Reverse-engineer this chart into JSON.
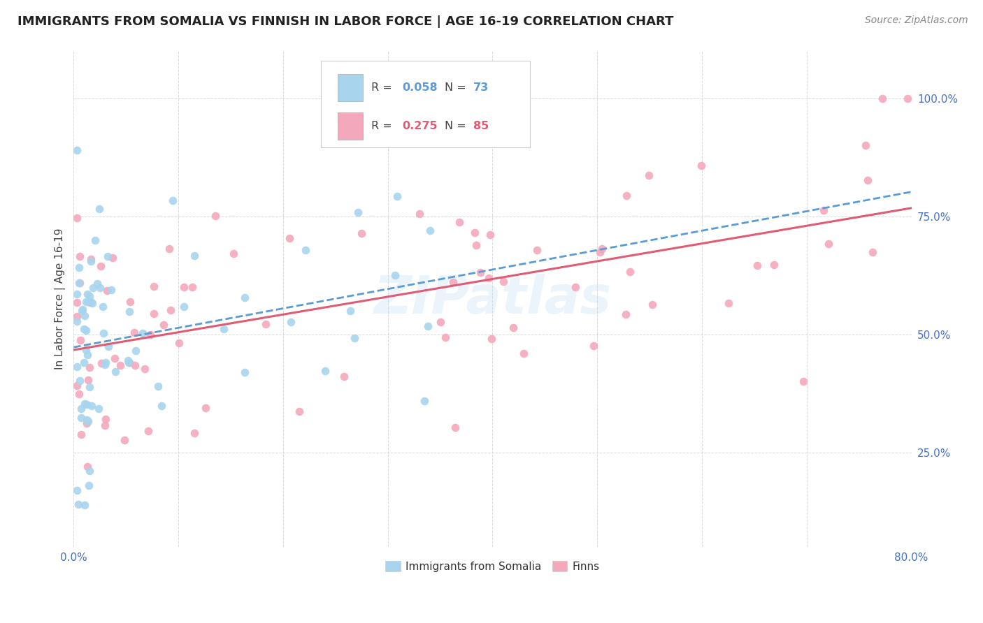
{
  "title": "IMMIGRANTS FROM SOMALIA VS FINNISH IN LABOR FORCE | AGE 16-19 CORRELATION CHART",
  "source": "Source: ZipAtlas.com",
  "ylabel": "In Labor Force | Age 16-19",
  "xlim": [
    0.0,
    0.8
  ],
  "ylim": [
    0.05,
    1.1
  ],
  "yticks": [
    0.25,
    0.5,
    0.75,
    1.0
  ],
  "ytick_labels": [
    "25.0%",
    "50.0%",
    "75.0%",
    "100.0%"
  ],
  "xticks": [
    0.0,
    0.1,
    0.2,
    0.3,
    0.4,
    0.5,
    0.6,
    0.7,
    0.8
  ],
  "xtick_labels": [
    "0.0%",
    "",
    "",
    "",
    "",
    "",
    "",
    "",
    "80.0%"
  ],
  "somalia_color": "#a8d4ee",
  "finns_color": "#f4a8bc",
  "somalia_trend_color": "#5b9bd5",
  "finns_trend_color": "#e05c75",
  "R_somalia": 0.058,
  "N_somalia": 73,
  "R_finns": 0.275,
  "N_finns": 85,
  "watermark": "ZIPatlas",
  "title_fontsize": 13,
  "source_fontsize": 10,
  "axis_label_fontsize": 11,
  "tick_fontsize": 11
}
